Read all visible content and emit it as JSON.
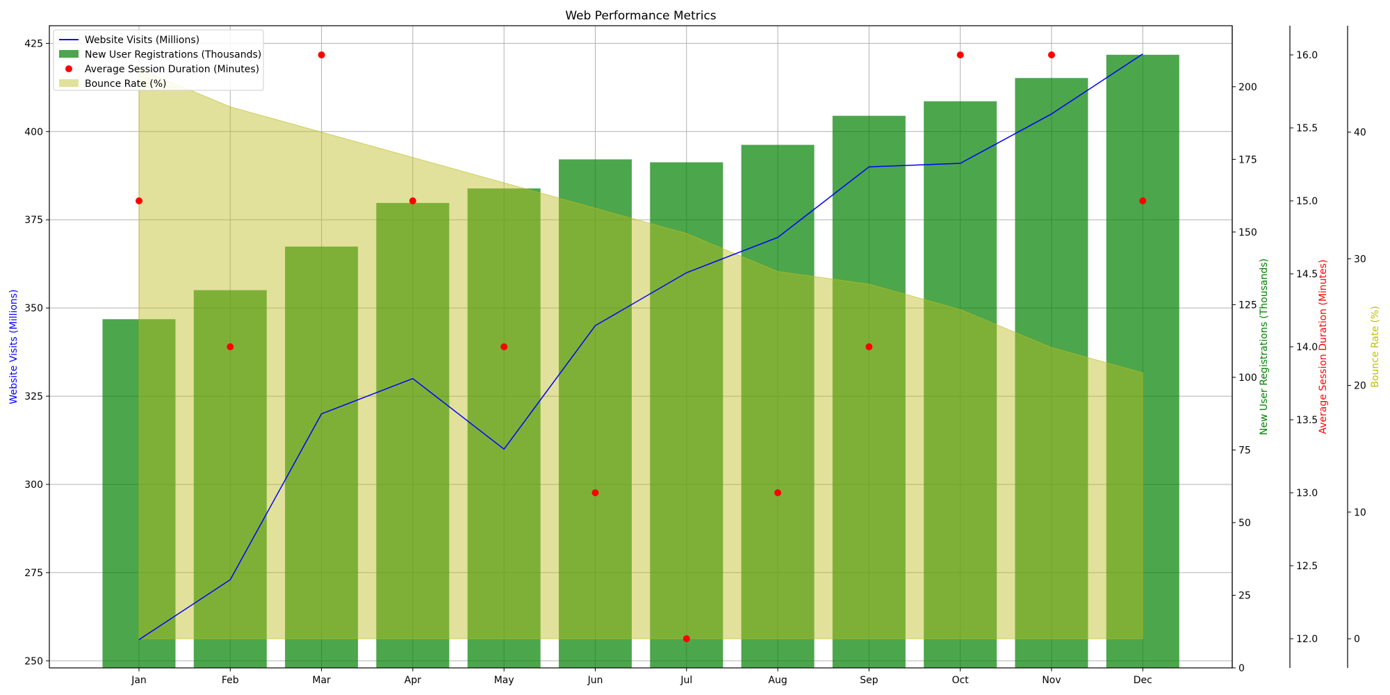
{
  "chart_data": {
    "type": "bar",
    "title": "Web Performance Metrics",
    "categories": [
      "Jan",
      "Feb",
      "Mar",
      "Apr",
      "May",
      "Jun",
      "Jul",
      "Aug",
      "Sep",
      "Oct",
      "Nov",
      "Dec"
    ],
    "grid": true,
    "legend_position": "top-left",
    "axes": {
      "left": {
        "label": "Website Visits (Millions)",
        "color": "#0000ff",
        "range": [
          248,
          430
        ],
        "ticks": [
          250,
          275,
          300,
          325,
          350,
          375,
          400,
          425
        ]
      },
      "right_registrations": {
        "label": "New User Registrations (Thousands)",
        "color": "#008000",
        "range": [
          0,
          221
        ],
        "ticks": [
          0,
          25,
          50,
          75,
          100,
          125,
          150,
          175,
          200
        ]
      },
      "right_duration": {
        "label": "Average Session Duration (Minutes)",
        "color": "#ff0000",
        "range": [
          11.8,
          16.2
        ],
        "ticks": [
          12.0,
          12.5,
          13.0,
          13.5,
          14.0,
          14.5,
          15.0,
          15.5,
          16.0
        ]
      },
      "right_bounce": {
        "label": "Bounce Rate (%)",
        "color": "#bfbf00",
        "range": [
          -2.3,
          48.4
        ],
        "ticks": [
          0,
          10,
          20,
          30,
          40
        ]
      }
    },
    "series": [
      {
        "name": "New User Registrations (Thousands)",
        "type": "bar",
        "axis": "right_registrations",
        "color": "#008000",
        "values": [
          120,
          130,
          145,
          160,
          165,
          175,
          174,
          180,
          190,
          195,
          203,
          211
        ]
      },
      {
        "name": "Bounce Rate (%)",
        "type": "area",
        "axis": "right_bounce",
        "color": "#bcbc22",
        "values": [
          45,
          42,
          40,
          38,
          36,
          34,
          32,
          29,
          28,
          26,
          23,
          21
        ]
      },
      {
        "name": "Website Visits (Millions)",
        "type": "line",
        "axis": "left",
        "color": "#0000ff",
        "values": [
          256,
          273,
          320,
          330,
          310,
          345,
          360,
          370,
          390,
          391,
          405,
          422
        ]
      },
      {
        "name": "Average Session Duration (Minutes)",
        "type": "scatter",
        "axis": "right_duration",
        "color": "#ff0000",
        "values": [
          15.0,
          14.0,
          16.0,
          15.0,
          14.0,
          13.0,
          12.0,
          13.0,
          14.0,
          16.0,
          16.0,
          15.0
        ]
      }
    ],
    "legend": [
      {
        "label": "Website Visits (Millions)",
        "marker": "line",
        "color": "#0000ff"
      },
      {
        "label": "New User Registrations (Thousands)",
        "marker": "patch",
        "color": "#008000"
      },
      {
        "label": "Average Session Duration (Minutes)",
        "marker": "dot",
        "color": "#ff0000"
      },
      {
        "label": "Bounce Rate (%)",
        "marker": "patch",
        "color": "#bcbc22"
      }
    ]
  }
}
